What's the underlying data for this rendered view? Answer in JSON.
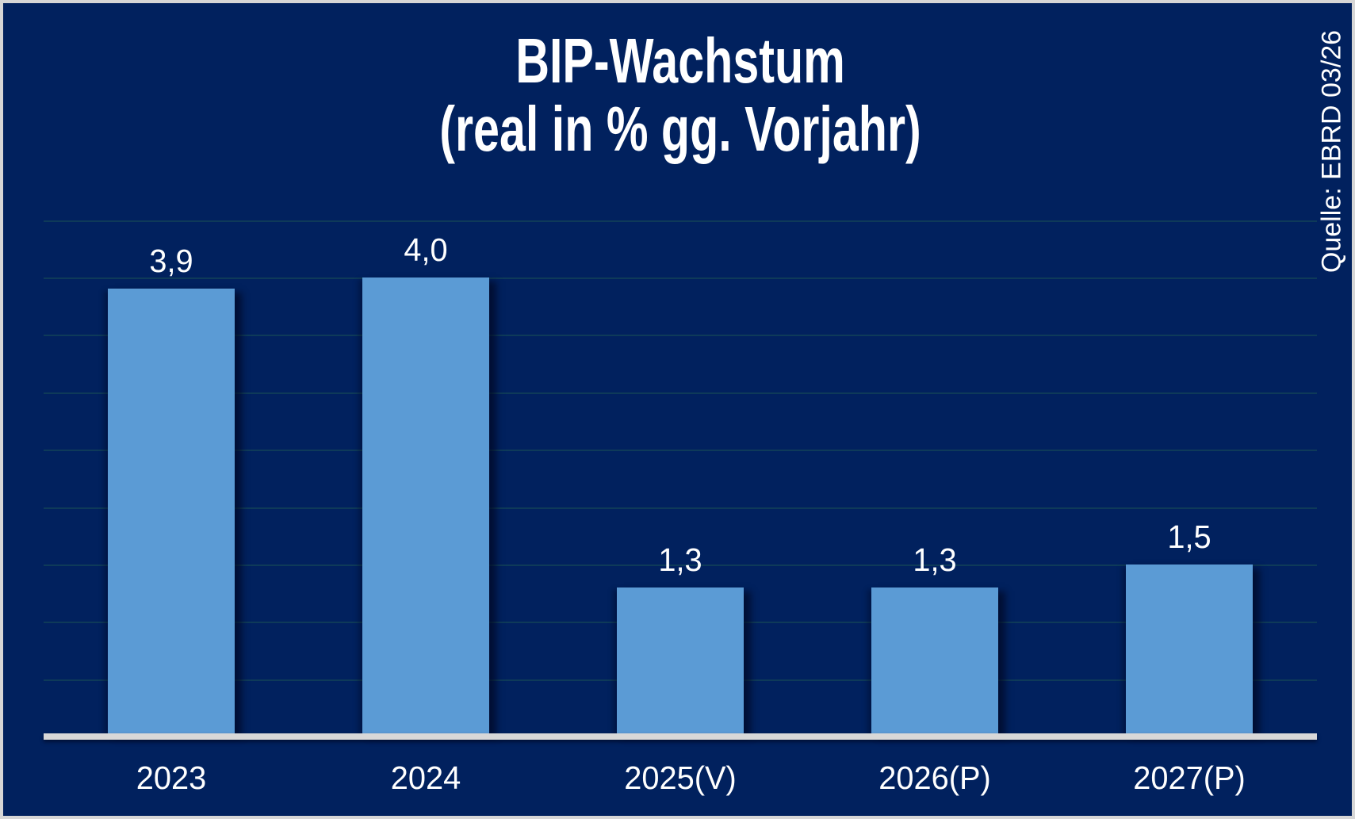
{
  "chart_data": {
    "type": "bar",
    "title": "BIP-Wachstum",
    "subtitle": "(real in % gg. Vorjahr)",
    "source_note": "Quelle: EBRD 03/26",
    "categories": [
      "2023",
      "2024",
      "2025(V)",
      "2026(P)",
      "2027(P)"
    ],
    "values": [
      3.9,
      4.0,
      1.3,
      1.3,
      1.5
    ],
    "value_labels": [
      "3,9",
      "4,0",
      "1,3",
      "1,3",
      "1,5"
    ],
    "xlabel": "",
    "ylabel": "",
    "ylim": [
      0,
      4.5
    ],
    "gridline_interval": 0.5,
    "grid": "horizontal-only",
    "legend": "none",
    "y_axis_tick_labels_visible": false,
    "colors": {
      "background": "#01215e",
      "bar_fill": "#5b9bd5",
      "text": "#ffffff",
      "gridline": "#19505a",
      "axis_line": "#d8d8d8",
      "frame_border": "#d6d6d6"
    }
  }
}
